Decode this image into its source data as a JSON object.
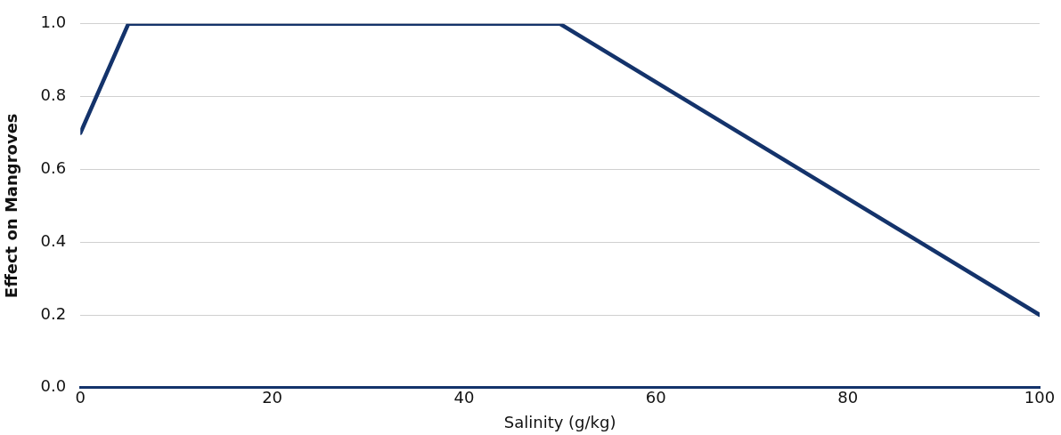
{
  "chart_data": {
    "type": "line",
    "xlabel": "Salinity (g/kg)",
    "ylabel": "Effect on Mangroves",
    "x": [
      0,
      5,
      50,
      100
    ],
    "series": [
      {
        "color": "#14336b",
        "values": [
          0.7,
          1.0,
          1.0,
          0.2
        ]
      }
    ],
    "xlim": [
      0,
      100
    ],
    "xticks": [
      0,
      20,
      40,
      60,
      80,
      100
    ],
    "ylim": [
      0,
      1
    ],
    "yticks": [
      {
        "value": 0,
        "label": "0.0"
      },
      0.2,
      0.4,
      0.6,
      0.8,
      {
        "value": 1,
        "label": "1.0"
      }
    ],
    "grid": "y",
    "legend": false,
    "marker": "none",
    "line_style": "solid"
  }
}
